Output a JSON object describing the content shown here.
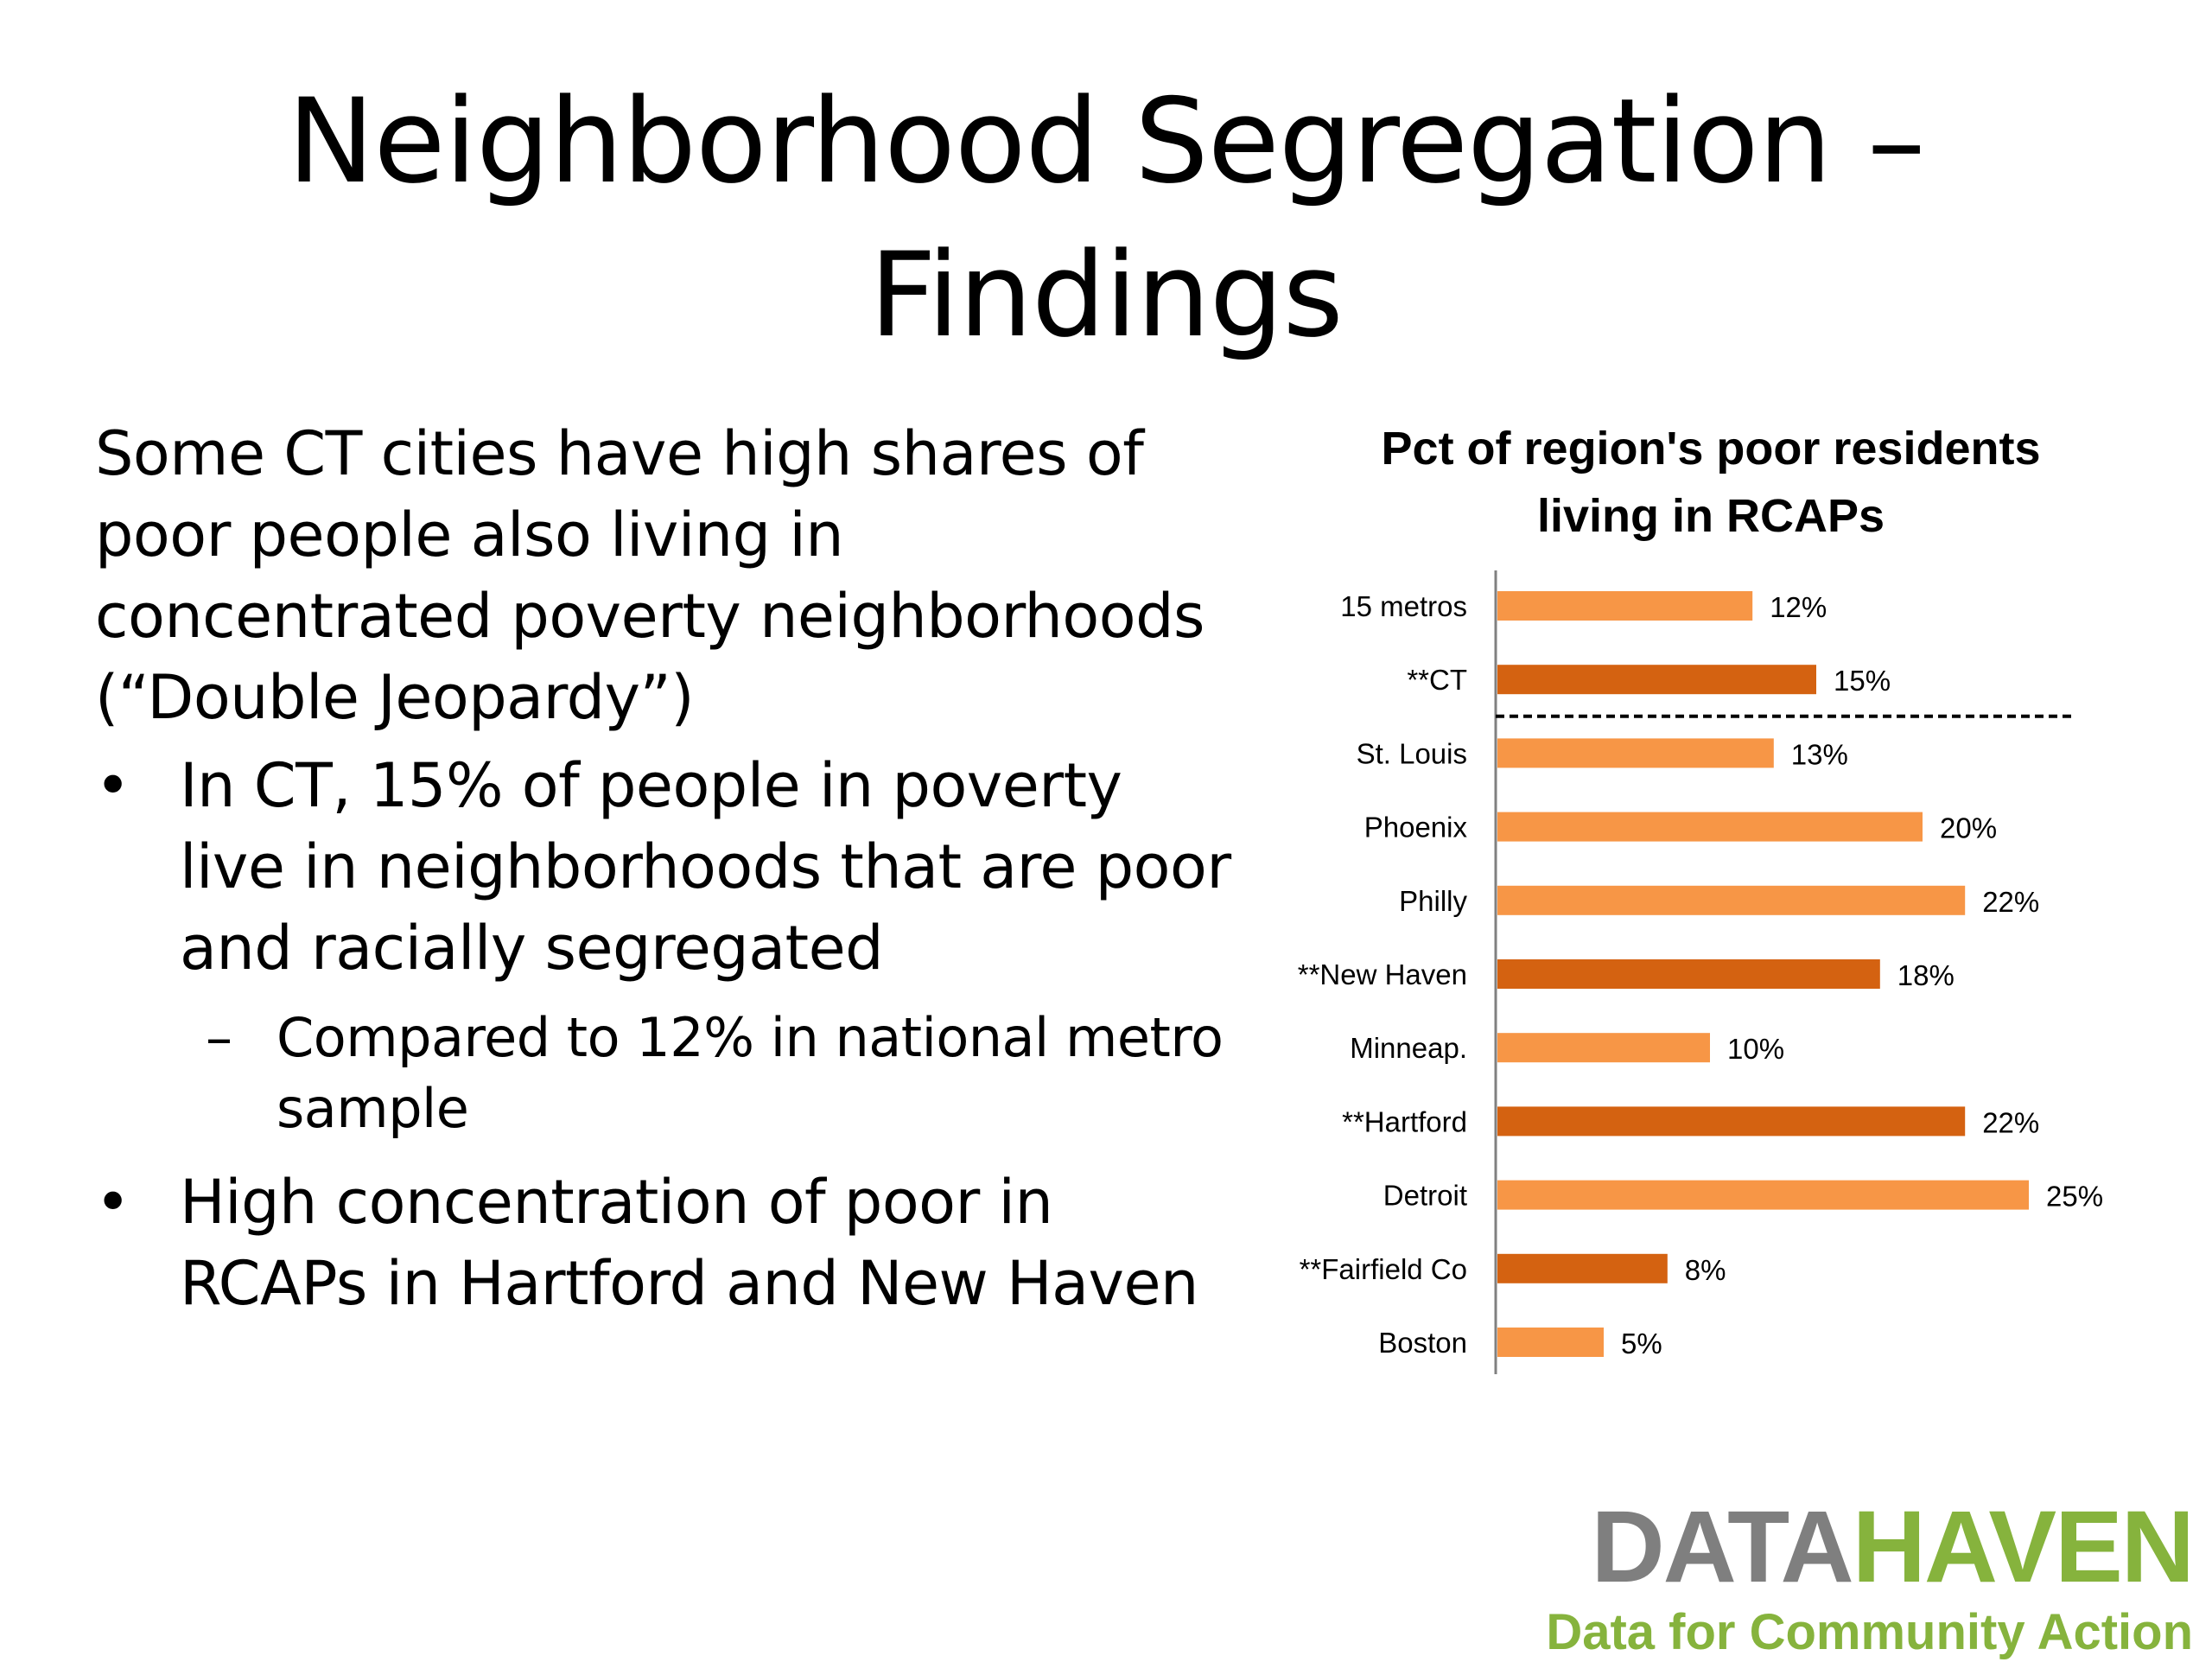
{
  "slide": {
    "title_line1": "Neighborhood Segregation –",
    "title_line2": "Findings"
  },
  "body": {
    "intro": "Some CT cities have high shares of poor people also living in concentrated poverty neighborhoods (“Double Jeopardy”)",
    "bullet_mark": "•",
    "sub_mark": "–",
    "bullet1": "In CT, 15% of people in poverty live in neighborhoods that are poor and racially segregated",
    "sub1": "Compared to 12% in national metro sample",
    "bullet2": "High concentration of poor in RCAPs in Hartford and New Haven"
  },
  "logo": {
    "data": "DATA",
    "haven": "HAVEN",
    "tagline": "Data for Community Action"
  },
  "chart_data": {
    "type": "bar",
    "orientation": "horizontal",
    "title_line1": "Pct of region's poor residents",
    "title_line2": "living in RCAPs",
    "categories": [
      "15 metros",
      "**CT",
      "St. Louis",
      "Phoenix",
      "Philly",
      "**New Haven",
      "Minneap.",
      "**Hartford",
      "Detroit",
      "**Fairfield Co",
      "Boston"
    ],
    "values": [
      12,
      15,
      13,
      20,
      22,
      18,
      10,
      22,
      25,
      8,
      5
    ],
    "value_labels": [
      "12%",
      "15%",
      "13%",
      "20%",
      "22%",
      "18%",
      "10%",
      "22%",
      "25%",
      "8%",
      "5%"
    ],
    "highlighted": [
      false,
      true,
      false,
      false,
      false,
      true,
      false,
      true,
      false,
      true,
      false
    ],
    "divider_after_index": 1,
    "colors": {
      "default": "#f79646",
      "highlight": "#d46211",
      "axis": "#808080",
      "divider": "#000000"
    },
    "grid": false,
    "legend": "none"
  }
}
